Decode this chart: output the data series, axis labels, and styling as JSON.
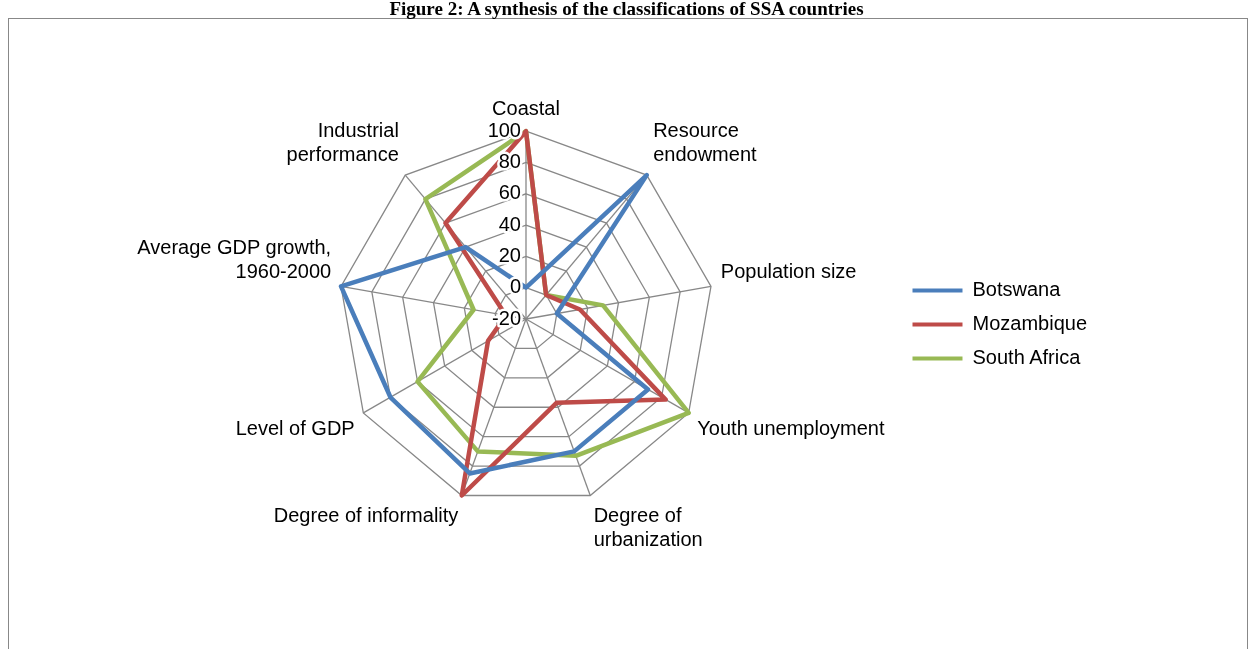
{
  "chart_data": {
    "type": "radar",
    "title": "Figure 2: A synthesis of the classifications of SSA countries",
    "categories": [
      "Coastal",
      "Resource\nendowment",
      "Population size",
      "Youth unemployment",
      "Degree of\nurbanization",
      "Degree of informality",
      "Level of GDP",
      "Average GDP growth,\n1960-2000",
      "Industrial\nperformance"
    ],
    "series": [
      {
        "name": "Botswana",
        "color": "#4a7ebb",
        "values": [
          0,
          100,
          0,
          70,
          70,
          85,
          80,
          100,
          40
        ]
      },
      {
        "name": "Mozambique",
        "color": "#be4b48",
        "values": [
          100,
          0,
          15,
          83,
          37,
          100,
          8,
          -7,
          60
        ]
      },
      {
        "name": "South Africa",
        "color": "#98b954",
        "values": [
          100,
          0,
          30,
          100,
          73,
          70,
          60,
          14,
          80
        ]
      }
    ],
    "ylim": [
      -20,
      100
    ],
    "yticks": [
      -20,
      0,
      20,
      40,
      60,
      80,
      100
    ],
    "grid": true,
    "legend": "right",
    "marker": "none",
    "line_style": "solid"
  }
}
